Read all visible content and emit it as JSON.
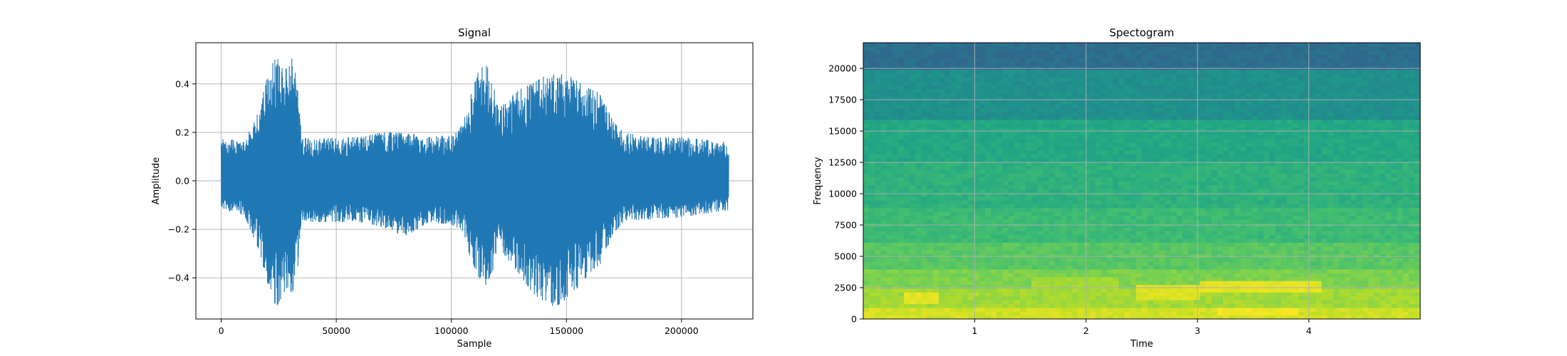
{
  "chart_data": [
    {
      "type": "line",
      "title": "Signal",
      "xlabel": "Sample",
      "ylabel": "Amplitude",
      "xlim": [
        -11000,
        231000
      ],
      "ylim": [
        -0.57,
        0.57
      ],
      "xticks": [
        0,
        50000,
        100000,
        150000,
        200000
      ],
      "xtick_labels": [
        "0",
        "50000",
        "100000",
        "150000",
        "200000"
      ],
      "yticks": [
        -0.4,
        -0.2,
        0.0,
        0.2,
        0.4
      ],
      "ytick_labels": [
        "−0.4",
        "−0.2",
        "0.0",
        "0.2",
        "0.4"
      ],
      "grid": true,
      "color": "#1f77b4",
      "series": [
        {
          "x": [
            0,
            10000,
            17000,
            20000,
            24000,
            28000,
            31000,
            33000,
            35000,
            40000,
            50000,
            60000,
            70000,
            80000,
            90000,
            100000,
            104000,
            108000,
            112000,
            115000,
            118000,
            121000,
            125000,
            130000,
            135000,
            140000,
            145000,
            150000,
            155000,
            160000,
            165000,
            170000,
            175000,
            185000,
            200000,
            220500
          ],
          "upper": [
            0.18,
            0.16,
            0.3,
            0.45,
            0.51,
            0.46,
            0.51,
            0.4,
            0.18,
            0.17,
            0.18,
            0.18,
            0.2,
            0.2,
            0.18,
            0.19,
            0.22,
            0.34,
            0.46,
            0.49,
            0.4,
            0.3,
            0.34,
            0.38,
            0.4,
            0.43,
            0.44,
            0.44,
            0.41,
            0.38,
            0.36,
            0.25,
            0.2,
            0.18,
            0.18,
            0.16
          ],
          "lower": [
            -0.12,
            -0.14,
            -0.3,
            -0.43,
            -0.52,
            -0.45,
            -0.46,
            -0.4,
            -0.16,
            -0.17,
            -0.17,
            -0.17,
            -0.19,
            -0.23,
            -0.17,
            -0.18,
            -0.2,
            -0.31,
            -0.4,
            -0.43,
            -0.37,
            -0.28,
            -0.33,
            -0.39,
            -0.46,
            -0.5,
            -0.52,
            -0.49,
            -0.44,
            -0.38,
            -0.34,
            -0.22,
            -0.17,
            -0.16,
            -0.15,
            -0.12
          ]
        }
      ]
    },
    {
      "type": "heatmap",
      "title": "Spectogram",
      "xlabel": "Time",
      "ylabel": "Frequency",
      "xlim": [
        0,
        5.0
      ],
      "ylim": [
        0,
        22050
      ],
      "xticks": [
        1,
        2,
        3,
        4
      ],
      "xtick_labels": [
        "1",
        "2",
        "3",
        "4"
      ],
      "yticks": [
        0,
        2500,
        5000,
        7500,
        10000,
        12500,
        15000,
        17500,
        20000
      ],
      "ytick_labels": [
        "0",
        "2500",
        "5000",
        "7500",
        "10000",
        "12500",
        "15000",
        "17500",
        "20000"
      ],
      "grid": true,
      "colormap": "viridis",
      "frequency_bands": [
        {
          "from": 0,
          "to": 1000,
          "level": 0.93
        },
        {
          "from": 1000,
          "to": 2500,
          "level": 0.86
        },
        {
          "from": 2500,
          "to": 4000,
          "level": 0.8
        },
        {
          "from": 4000,
          "to": 6000,
          "level": 0.74
        },
        {
          "from": 6000,
          "to": 9000,
          "level": 0.68
        },
        {
          "from": 9000,
          "to": 12500,
          "level": 0.64
        },
        {
          "from": 12500,
          "to": 16000,
          "level": 0.6
        },
        {
          "from": 16000,
          "to": 20000,
          "level": 0.5
        },
        {
          "from": 20000,
          "to": 22050,
          "level": 0.36
        }
      ],
      "highlights": [
        {
          "t0": 0.35,
          "t1": 0.7,
          "f0": 1300,
          "f1": 2200,
          "level": 0.98
        },
        {
          "t0": 1.5,
          "t1": 2.3,
          "f0": 2500,
          "f1": 3500,
          "level": 0.88
        },
        {
          "t0": 2.45,
          "t1": 3.0,
          "f0": 1500,
          "f1": 2700,
          "level": 0.97
        },
        {
          "t0": 3.0,
          "t1": 4.1,
          "f0": 2000,
          "f1": 3000,
          "level": 0.98
        },
        {
          "t0": 3.2,
          "t1": 3.9,
          "f0": 300,
          "f1": 1000,
          "level": 1.0
        }
      ]
    }
  ]
}
